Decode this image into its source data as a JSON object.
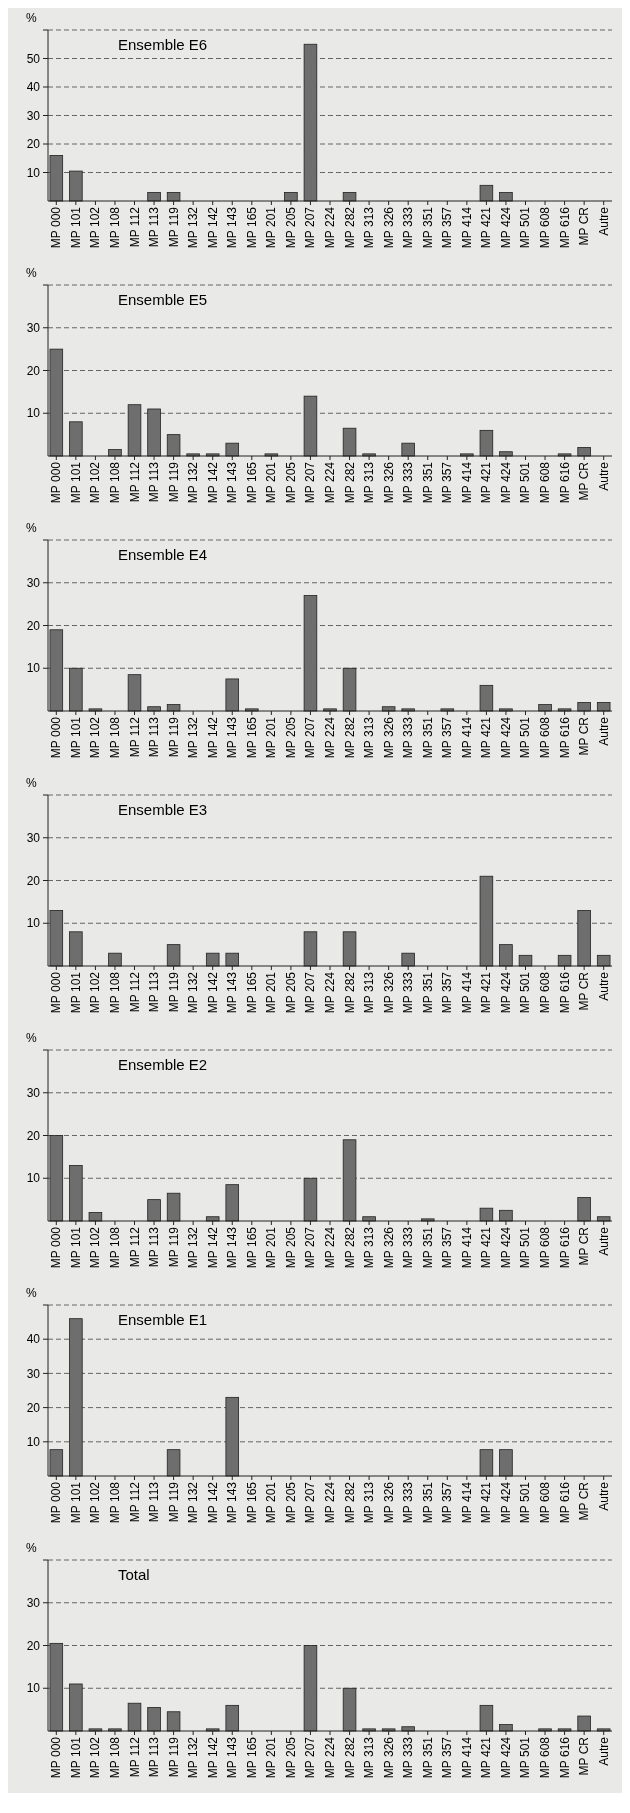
{
  "chart_data": [
    {
      "type": "bar",
      "title": "Ensemble E6",
      "ylabel": "%",
      "categories": [
        "MP 000",
        "MP 101",
        "MP 102",
        "MP 108",
        "MP 112",
        "MP 113",
        "MP 119",
        "MP 132",
        "MP 142",
        "MP 143",
        "MP 165",
        "MP 201",
        "MP 205",
        "MP 207",
        "MP 224",
        "MP 282",
        "MP 313",
        "MP 326",
        "MP 333",
        "MP 351",
        "MP 357",
        "MP 414",
        "MP 421",
        "MP 424",
        "MP 501",
        "MP 608",
        "MP 616",
        "MP CR",
        "Autre"
      ],
      "values": [
        16,
        10.5,
        0,
        0,
        0,
        3,
        3,
        0,
        0,
        0,
        0,
        0,
        3,
        55,
        0,
        3,
        0,
        0,
        0,
        0,
        0,
        0,
        5.5,
        3,
        0,
        0,
        0,
        0,
        0
      ],
      "color": "#6e6e6e",
      "ylim": [
        0,
        60
      ],
      "yticks": [
        10,
        20,
        30,
        40,
        50,
        {
          "value": 60,
          "label": null
        }
      ],
      "grid": "y"
    },
    {
      "type": "bar",
      "title": "Ensemble E5",
      "ylabel": "%",
      "categories": [
        "MP 000",
        "MP 101",
        "MP 102",
        "MP 108",
        "MP 112",
        "MP 113",
        "MP 119",
        "MP 132",
        "MP 142",
        "MP 143",
        "MP 165",
        "MP 201",
        "MP 205",
        "MP 207",
        "MP 224",
        "MP 282",
        "MP 313",
        "MP 326",
        "MP 333",
        "MP 351",
        "MP 357",
        "MP 414",
        "MP 421",
        "MP 424",
        "MP 501",
        "MP 608",
        "MP 616",
        "MP CR",
        "Autre"
      ],
      "values": [
        25,
        8,
        0,
        1.5,
        12,
        11,
        5,
        0.5,
        0.5,
        3,
        0,
        0.5,
        0,
        14,
        0,
        6.5,
        0.5,
        0,
        3,
        0,
        0,
        0.5,
        6,
        1,
        0,
        0,
        0.5,
        2,
        0
      ],
      "color": "#6e6e6e",
      "ylim": [
        0,
        40
      ],
      "yticks": [
        10,
        20,
        30,
        {
          "value": 40,
          "label": null
        }
      ],
      "grid": "y"
    },
    {
      "type": "bar",
      "title": "Ensemble E4",
      "ylabel": "%",
      "categories": [
        "MP 000",
        "MP 101",
        "MP 102",
        "MP 108",
        "MP 112",
        "MP 113",
        "MP 119",
        "MP 132",
        "MP 142",
        "MP 143",
        "MP 165",
        "MP 201",
        "MP 205",
        "MP 207",
        "MP 224",
        "MP 282",
        "MP 313",
        "MP 326",
        "MP 333",
        "MP 351",
        "MP 357",
        "MP 414",
        "MP 421",
        "MP 424",
        "MP 501",
        "MP 608",
        "MP 616",
        "MP CR",
        "Autre"
      ],
      "values": [
        19,
        10,
        0.5,
        0,
        8.5,
        1,
        1.5,
        0,
        0,
        7.5,
        0.5,
        0,
        0,
        27,
        0.5,
        10,
        0,
        1,
        0.5,
        0,
        0.5,
        0,
        6,
        0.5,
        0,
        1.5,
        0.5,
        2,
        2
      ],
      "color": "#6e6e6e",
      "ylim": [
        0,
        40
      ],
      "yticks": [
        10,
        20,
        30,
        {
          "value": 40,
          "label": null
        }
      ],
      "grid": "y"
    },
    {
      "type": "bar",
      "title": "Ensemble E3",
      "ylabel": "%",
      "categories": [
        "MP 000",
        "MP 101",
        "MP 102",
        "MP 108",
        "MP 112",
        "MP 113",
        "MP 119",
        "MP 132",
        "MP 142",
        "MP 143",
        "MP 165",
        "MP 201",
        "MP 205",
        "MP 207",
        "MP 224",
        "MP 282",
        "MP 313",
        "MP 326",
        "MP 333",
        "MP 351",
        "MP 357",
        "MP 414",
        "MP 421",
        "MP 424",
        "MP 501",
        "MP 608",
        "MP 616",
        "MP CR",
        "Autre"
      ],
      "values": [
        13,
        8,
        0,
        3,
        0,
        0,
        5,
        0,
        3,
        3,
        0,
        0,
        0,
        8,
        0,
        8,
        0,
        0,
        3,
        0,
        0,
        0,
        21,
        5,
        2.5,
        0,
        2.5,
        13,
        2.5
      ],
      "color": "#6e6e6e",
      "ylim": [
        0,
        40
      ],
      "yticks": [
        10,
        20,
        30,
        {
          "value": 40,
          "label": null
        }
      ],
      "grid": "y"
    },
    {
      "type": "bar",
      "title": "Ensemble E2",
      "ylabel": "%",
      "categories": [
        "MP 000",
        "MP 101",
        "MP 102",
        "MP 108",
        "MP 112",
        "MP 113",
        "MP 119",
        "MP 132",
        "MP 142",
        "MP 143",
        "MP 165",
        "MP 201",
        "MP 205",
        "MP 207",
        "MP 224",
        "MP 282",
        "MP 313",
        "MP 326",
        "MP 333",
        "MP 351",
        "MP 357",
        "MP 414",
        "MP 421",
        "MP 424",
        "MP 501",
        "MP 608",
        "MP 616",
        "MP CR",
        "Autre"
      ],
      "values": [
        20,
        13,
        2,
        0,
        0,
        5,
        6.5,
        0,
        1,
        8.5,
        0,
        0,
        0,
        10,
        0,
        19,
        1,
        0,
        0,
        0.5,
        0,
        0,
        3,
        2.5,
        0,
        0,
        0,
        5.5,
        1
      ],
      "color": "#6e6e6e",
      "ylim": [
        0,
        40
      ],
      "yticks": [
        10,
        20,
        30,
        {
          "value": 40,
          "label": null
        }
      ],
      "grid": "y"
    },
    {
      "type": "bar",
      "title": "Ensemble E1",
      "ylabel": "%",
      "categories": [
        "MP 000",
        "MP 101",
        "MP 102",
        "MP 108",
        "MP 112",
        "MP 113",
        "MP 119",
        "MP 132",
        "MP 142",
        "MP 143",
        "MP 165",
        "MP 201",
        "MP 205",
        "MP 207",
        "MP 224",
        "MP 282",
        "MP 313",
        "MP 326",
        "MP 333",
        "MP 351",
        "MP 357",
        "MP 414",
        "MP 421",
        "MP 424",
        "MP 501",
        "MP 608",
        "MP 616",
        "MP CR",
        "Autre"
      ],
      "values": [
        7.7,
        46,
        0,
        0,
        0,
        0,
        7.7,
        0,
        0,
        23,
        0,
        0,
        0,
        0,
        0,
        0,
        0,
        0,
        0,
        0,
        0,
        0,
        7.7,
        7.7,
        0,
        0,
        0,
        0,
        0
      ],
      "color": "#6e6e6e",
      "ylim": [
        0,
        50
      ],
      "yticks": [
        10,
        20,
        30,
        40,
        {
          "value": 50,
          "label": null
        }
      ],
      "grid": "y"
    },
    {
      "type": "bar",
      "title": "Total",
      "ylabel": "%",
      "categories": [
        "MP 000",
        "MP 101",
        "MP 102",
        "MP 108",
        "MP 112",
        "MP 113",
        "MP 119",
        "MP 132",
        "MP 142",
        "MP 143",
        "MP 165",
        "MP 201",
        "MP 205",
        "MP 207",
        "MP 224",
        "MP 282",
        "MP 313",
        "MP 326",
        "MP 333",
        "MP 351",
        "MP 357",
        "MP 414",
        "MP 421",
        "MP 424",
        "MP 501",
        "MP 608",
        "MP 616",
        "MP CR",
        "Autre"
      ],
      "values": [
        20.5,
        11,
        0.5,
        0.5,
        6.5,
        5.5,
        4.5,
        0,
        0.5,
        6,
        0,
        0,
        0,
        20,
        0,
        10,
        0.5,
        0.5,
        1,
        0,
        0,
        0,
        6,
        1.5,
        0,
        0.5,
        0.5,
        3.5,
        0.5
      ],
      "color": "#6e6e6e",
      "ylim": [
        0,
        40
      ],
      "yticks": [
        10,
        20,
        30,
        {
          "value": 40,
          "label": null
        }
      ],
      "grid": "y"
    }
  ]
}
